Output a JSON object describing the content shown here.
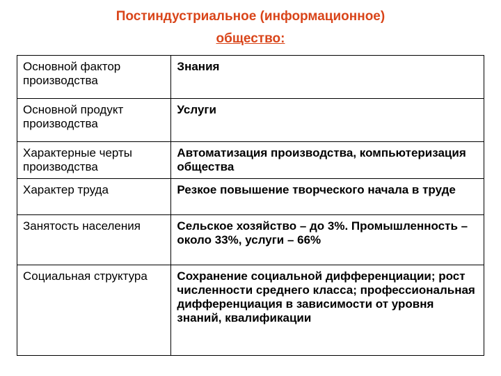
{
  "title": {
    "line1": "Постиндустриальное (информационное)",
    "line2": "общество:",
    "color": "#d9451a",
    "fontsize": 19
  },
  "table": {
    "border_color": "#000000",
    "cell_padding_v": 6,
    "cell_padding_h": 8,
    "label_fontsize": 17,
    "value_fontsize": 17,
    "label_color": "#000000",
    "value_color": "#000000",
    "rows": [
      {
        "label": "Основной фактор производства",
        "value": "Знания",
        "min_height": 62
      },
      {
        "label": "Основной продукт производства",
        "value": "Услуги",
        "min_height": 62
      },
      {
        "label": "Характерные черты производства",
        "value": "Автоматизация производства, компьютеризация общества",
        "min_height": 52
      },
      {
        "label": "Характер труда",
        "value": "Резкое повышение творческого начала в труде",
        "min_height": 52
      },
      {
        "label": "Занятость населения",
        "value": "Сельское хозяйство – до 3%. Промышленность – около 33%, услуги – 66%",
        "min_height": 72
      },
      {
        "label": "Социальная структура",
        "value": "Сохранение социальной дифференциации; рост численности среднего класса; профессиональная дифференциация в зависимости от уровня знаний, квалификации",
        "min_height": 130
      }
    ]
  }
}
